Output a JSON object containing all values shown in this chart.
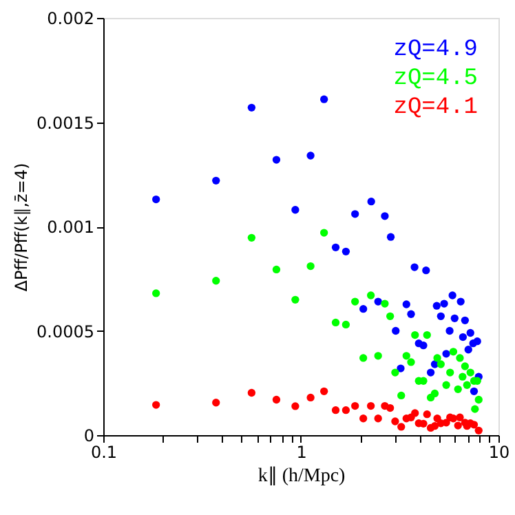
{
  "chart_data": {
    "type": "scatter",
    "xlabel": "k∥ (h/Mpc)",
    "ylabel": "ΔPff/Pff(k∥,z̄=4)",
    "log": "x",
    "marker": "circle",
    "legend": "top right",
    "grid": false,
    "xlim": [
      0.1,
      10
    ],
    "xticks": [
      0.1,
      {
        "value": 0.2,
        "label": null
      },
      {
        "value": 0.3,
        "label": null
      },
      {
        "value": 0.4,
        "label": null
      },
      {
        "value": 0.5,
        "label": null
      },
      {
        "value": 0.6,
        "label": null
      },
      {
        "value": 0.7,
        "label": null
      },
      {
        "value": 0.8,
        "label": null
      },
      {
        "value": 0.9,
        "label": null
      },
      1,
      {
        "value": 2,
        "label": null
      },
      {
        "value": 3,
        "label": null
      },
      {
        "value": 4,
        "label": null
      },
      {
        "value": 5,
        "label": null
      },
      {
        "value": 6,
        "label": null
      },
      {
        "value": 7,
        "label": null
      },
      {
        "value": 8,
        "label": null
      },
      {
        "value": 9,
        "label": null
      },
      10
    ],
    "ylim": [
      0,
      0.002
    ],
    "yticks": [
      0,
      0.0005,
      0.001,
      0.0015,
      0.002
    ],
    "series": [
      {
        "name": "zQ=4.9",
        "color": "#0000ff",
        "x": [
          0.185,
          0.372,
          0.563,
          0.752,
          0.937,
          1.31,
          1.12,
          1.88,
          2.27,
          2.66,
          2.85,
          1.5,
          1.69,
          3.76,
          4.3,
          2.07,
          2.46,
          3.42,
          3.61,
          3.02,
          3.95,
          4.17,
          3.2,
          4.54,
          4.76,
          4.87,
          5.31,
          5.85,
          6.44,
          5.11,
          6.0,
          6.77,
          5.66,
          6.61,
          7.21,
          7.44,
          7.81,
          5.44,
          7.04,
          7.94,
          7.52
        ],
        "values": [
          0.00113,
          0.00122,
          0.00157,
          0.00132,
          0.00108,
          0.00161,
          0.00134,
          0.00106,
          0.00112,
          0.00105,
          0.00095,
          0.0009,
          0.00088,
          0.000805,
          0.00079,
          0.000605,
          0.00064,
          0.000627,
          0.00058,
          0.0005,
          0.00044,
          0.00043,
          0.00032,
          0.0003,
          0.00034,
          0.00062,
          0.00063,
          0.00067,
          0.00064,
          0.00057,
          0.00056,
          0.00055,
          0.0005,
          0.00047,
          0.00049,
          0.00044,
          0.00045,
          0.00039,
          0.00041,
          0.00028,
          0.00021
        ]
      },
      {
        "name": "zQ=4.5",
        "color": "#00ff00",
        "x": [
          0.185,
          0.372,
          0.563,
          0.752,
          0.937,
          1.31,
          1.12,
          1.5,
          1.69,
          1.88,
          2.26,
          2.66,
          2.83,
          2.07,
          2.46,
          3.78,
          4.35,
          3.42,
          3.61,
          3.0,
          3.22,
          3.95,
          4.17,
          4.54,
          4.76,
          4.9,
          5.11,
          5.44,
          5.69,
          5.91,
          6.24,
          6.38,
          6.77,
          6.58,
          6.93,
          7.21,
          7.52,
          7.81,
          7.94,
          7.6
        ],
        "values": [
          0.00068,
          0.00074,
          0.000946,
          0.000794,
          0.000649,
          0.00097,
          0.00081,
          0.00054,
          0.00053,
          0.00064,
          0.00067,
          0.00063,
          0.00057,
          0.00037,
          0.00038,
          0.00048,
          0.00048,
          0.00038,
          0.00035,
          0.0003,
          0.00019,
          0.00026,
          0.00026,
          0.00018,
          0.0002,
          0.00037,
          0.00034,
          0.00024,
          0.0003,
          0.0004,
          0.00022,
          0.00037,
          0.00033,
          0.00028,
          0.00024,
          0.0003,
          0.00026,
          0.00026,
          0.00017,
          0.000125
        ]
      },
      {
        "name": "zQ=4.1",
        "color": "#ff0000",
        "x": [
          0.185,
          0.372,
          0.563,
          0.752,
          0.937,
          1.12,
          1.31,
          1.5,
          1.69,
          1.88,
          2.07,
          2.26,
          2.46,
          2.66,
          2.83,
          3.0,
          3.22,
          3.42,
          3.61,
          3.78,
          3.95,
          4.17,
          4.35,
          4.54,
          4.76,
          4.9,
          5.11,
          5.44,
          5.69,
          5.91,
          6.24,
          6.38,
          6.77,
          6.93,
          7.21,
          7.52,
          7.94
        ],
        "values": [
          0.000145,
          0.000156,
          0.000203,
          0.00017,
          0.000139,
          0.00018,
          0.00021,
          0.00012,
          0.00012,
          0.00014,
          8e-05,
          0.00014,
          8e-05,
          0.00014,
          0.00013,
          6.6e-05,
          4e-05,
          8e-05,
          8.5e-05,
          0.000106,
          5.7e-05,
          5.5e-05,
          0.0001,
          3.5e-05,
          4.4e-05,
          8e-05,
          5.7e-05,
          6e-05,
          8.5e-05,
          8e-05,
          4.6e-05,
          8.5e-05,
          6e-05,
          4.4e-05,
          5.7e-05,
          5e-05,
          2.2e-05
        ]
      }
    ]
  }
}
